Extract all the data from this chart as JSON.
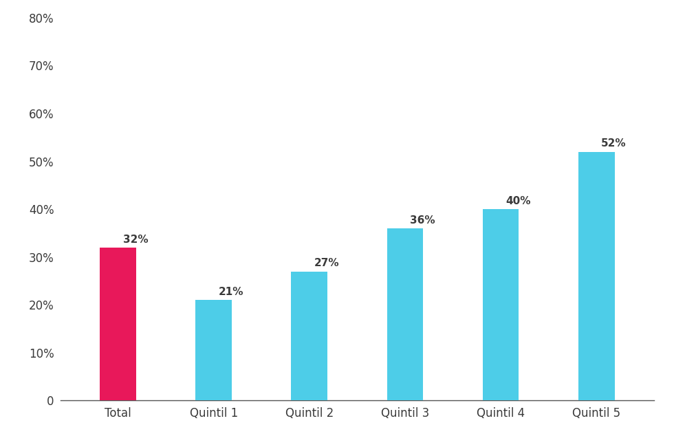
{
  "categories": [
    "Total",
    "Quintil 1",
    "Quintil 2",
    "Quintil 3",
    "Quintil 4",
    "Quintil 5"
  ],
  "values": [
    32,
    21,
    27,
    36,
    40,
    52
  ],
  "bar_colors": [
    "#E8185A",
    "#4DCDE8",
    "#4DCDE8",
    "#4DCDE8",
    "#4DCDE8",
    "#4DCDE8"
  ],
  "label_color": "#3a3a3a",
  "background_color": "#ffffff",
  "ylim": [
    0,
    80
  ],
  "yticks": [
    0,
    10,
    20,
    30,
    40,
    50,
    60,
    70,
    80
  ],
  "ytick_labels": [
    "0",
    "10%",
    "20%",
    "30%",
    "40%",
    "50%",
    "60%",
    "70%",
    "80%"
  ],
  "bar_width": 0.38,
  "label_fontsize": 11,
  "tick_fontsize": 12
}
